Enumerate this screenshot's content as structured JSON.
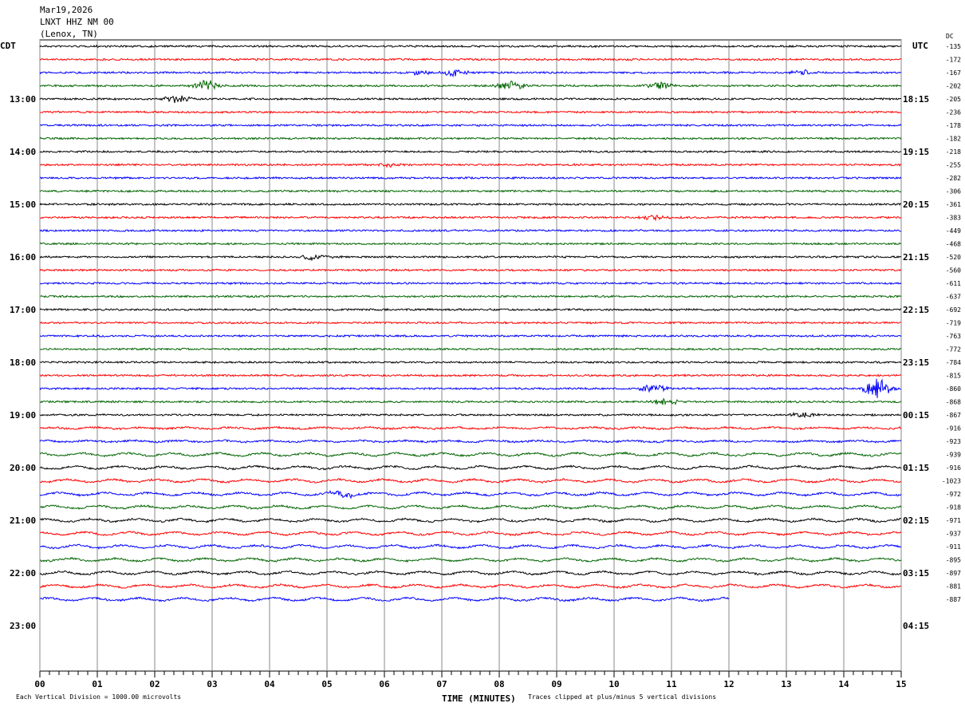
{
  "header": {
    "date": "Mar19,2026",
    "station": "LNXT HHZ NM 00",
    "location": "(Lenox, TN)"
  },
  "chart_data": {
    "type": "line",
    "title": "LNXT HHZ NM 00 helicorder",
    "left_axis_title": "CDT",
    "right_axis_title": "UTC",
    "dc_title": "DC",
    "xlabel": "TIME (MINUTES)",
    "xlim": [
      0,
      15
    ],
    "x_ticks": [
      "00",
      "01",
      "02",
      "03",
      "04",
      "05",
      "06",
      "07",
      "08",
      "09",
      "10",
      "11",
      "12",
      "13",
      "14",
      "15"
    ],
    "cdt_labels": [
      "13:00",
      "14:00",
      "15:00",
      "16:00",
      "17:00",
      "18:00",
      "19:00",
      "20:00",
      "21:00",
      "22:00",
      "23:00"
    ],
    "utc_labels": [
      "18:15",
      "19:15",
      "20:15",
      "21:15",
      "22:15",
      "23:15",
      "00:15",
      "01:15",
      "02:15",
      "03:15",
      "04:15"
    ],
    "trace_colors": [
      "#000000",
      "#ff0000",
      "#0000ff",
      "#006400"
    ],
    "dc_offsets": [
      "-135",
      "-172",
      "-167",
      "-202",
      "-205",
      "-236",
      "-178",
      "-182",
      "-218",
      "-255",
      "-282",
      "-306",
      "-361",
      "-383",
      "-449",
      "-468",
      "-520",
      "-560",
      "-611",
      "-637",
      "-692",
      "-719",
      "-763",
      "-772",
      "-784",
      "-815",
      "-860",
      "-868",
      "-867",
      "-916",
      "-923",
      "-939",
      "-916",
      "-1023",
      "-972",
      "-918",
      "-971",
      "-937",
      "-911",
      "-895",
      "-897",
      "-881",
      "-887"
    ],
    "last_trace_end_minute": 12,
    "events": [
      {
        "trace": 2,
        "minute": 7.2,
        "amp": 5
      },
      {
        "trace": 2,
        "minute": 6.6,
        "amp": 3
      },
      {
        "trace": 2,
        "minute": 13.3,
        "amp": 3
      },
      {
        "trace": 3,
        "minute": 2.9,
        "amp": 8
      },
      {
        "trace": 3,
        "minute": 8.2,
        "amp": 7
      },
      {
        "trace": 3,
        "minute": 10.8,
        "amp": 5
      },
      {
        "trace": 4,
        "minute": 2.4,
        "amp": 6
      },
      {
        "trace": 9,
        "minute": 6.1,
        "amp": 3
      },
      {
        "trace": 13,
        "minute": 10.7,
        "amp": 3
      },
      {
        "trace": 16,
        "minute": 4.8,
        "amp": 4
      },
      {
        "trace": 26,
        "minute": 10.7,
        "amp": 6
      },
      {
        "trace": 26,
        "minute": 14.6,
        "amp": 14
      },
      {
        "trace": 27,
        "minute": 10.9,
        "amp": 4
      },
      {
        "trace": 28,
        "minute": 13.3,
        "amp": 4
      },
      {
        "trace": 34,
        "minute": 5.3,
        "amp": 4
      }
    ],
    "vertical_division": "Each Vertical Division = 1000.00 microvolts",
    "clip_note": "Traces clipped at plus/minus 5 vertical divisions"
  }
}
